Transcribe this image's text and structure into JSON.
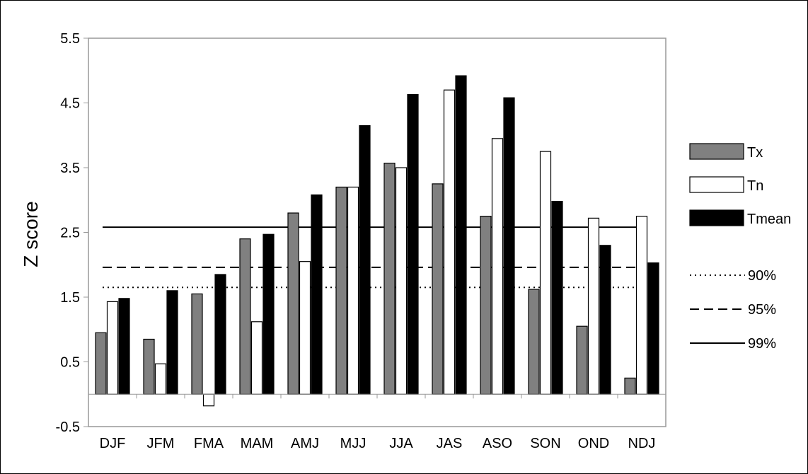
{
  "chart_data": {
    "type": "bar",
    "ylabel": "Z score",
    "ylim": [
      -0.5,
      5.5
    ],
    "yticks": [
      "5.5",
      "4.5",
      "3.5",
      "2.5",
      "1.5",
      "0.5",
      "-0.5"
    ],
    "ytick_values": [
      5.5,
      4.5,
      3.5,
      2.5,
      1.5,
      0.5,
      -0.5
    ],
    "categories": [
      "DJF",
      "JFM",
      "FMA",
      "MAM",
      "AMJ",
      "MJJ",
      "JJA",
      "JAS",
      "ASO",
      "SON",
      "OND",
      "NDJ"
    ],
    "series": [
      {
        "name": "Tx",
        "color": "#808080",
        "values": [
          0.95,
          0.85,
          1.55,
          2.4,
          2.8,
          3.2,
          3.57,
          3.25,
          2.75,
          1.62,
          1.05,
          0.25
        ]
      },
      {
        "name": "Tn",
        "color": "#ffffff",
        "values": [
          1.43,
          0.47,
          -0.18,
          1.12,
          2.05,
          3.2,
          3.5,
          4.7,
          3.95,
          3.75,
          2.72,
          2.75
        ]
      },
      {
        "name": "Tmean",
        "color": "#000000",
        "values": [
          1.48,
          1.6,
          1.85,
          2.47,
          3.08,
          4.15,
          4.63,
          4.92,
          4.58,
          2.98,
          2.3,
          2.03
        ]
      }
    ],
    "thresholds": [
      {
        "name": "90%",
        "value": 1.65,
        "style": "dotted"
      },
      {
        "name": "95%",
        "value": 1.96,
        "style": "dashed"
      },
      {
        "name": "99%",
        "value": 2.58,
        "style": "solid"
      }
    ],
    "grid": false,
    "legend_position": "right"
  }
}
